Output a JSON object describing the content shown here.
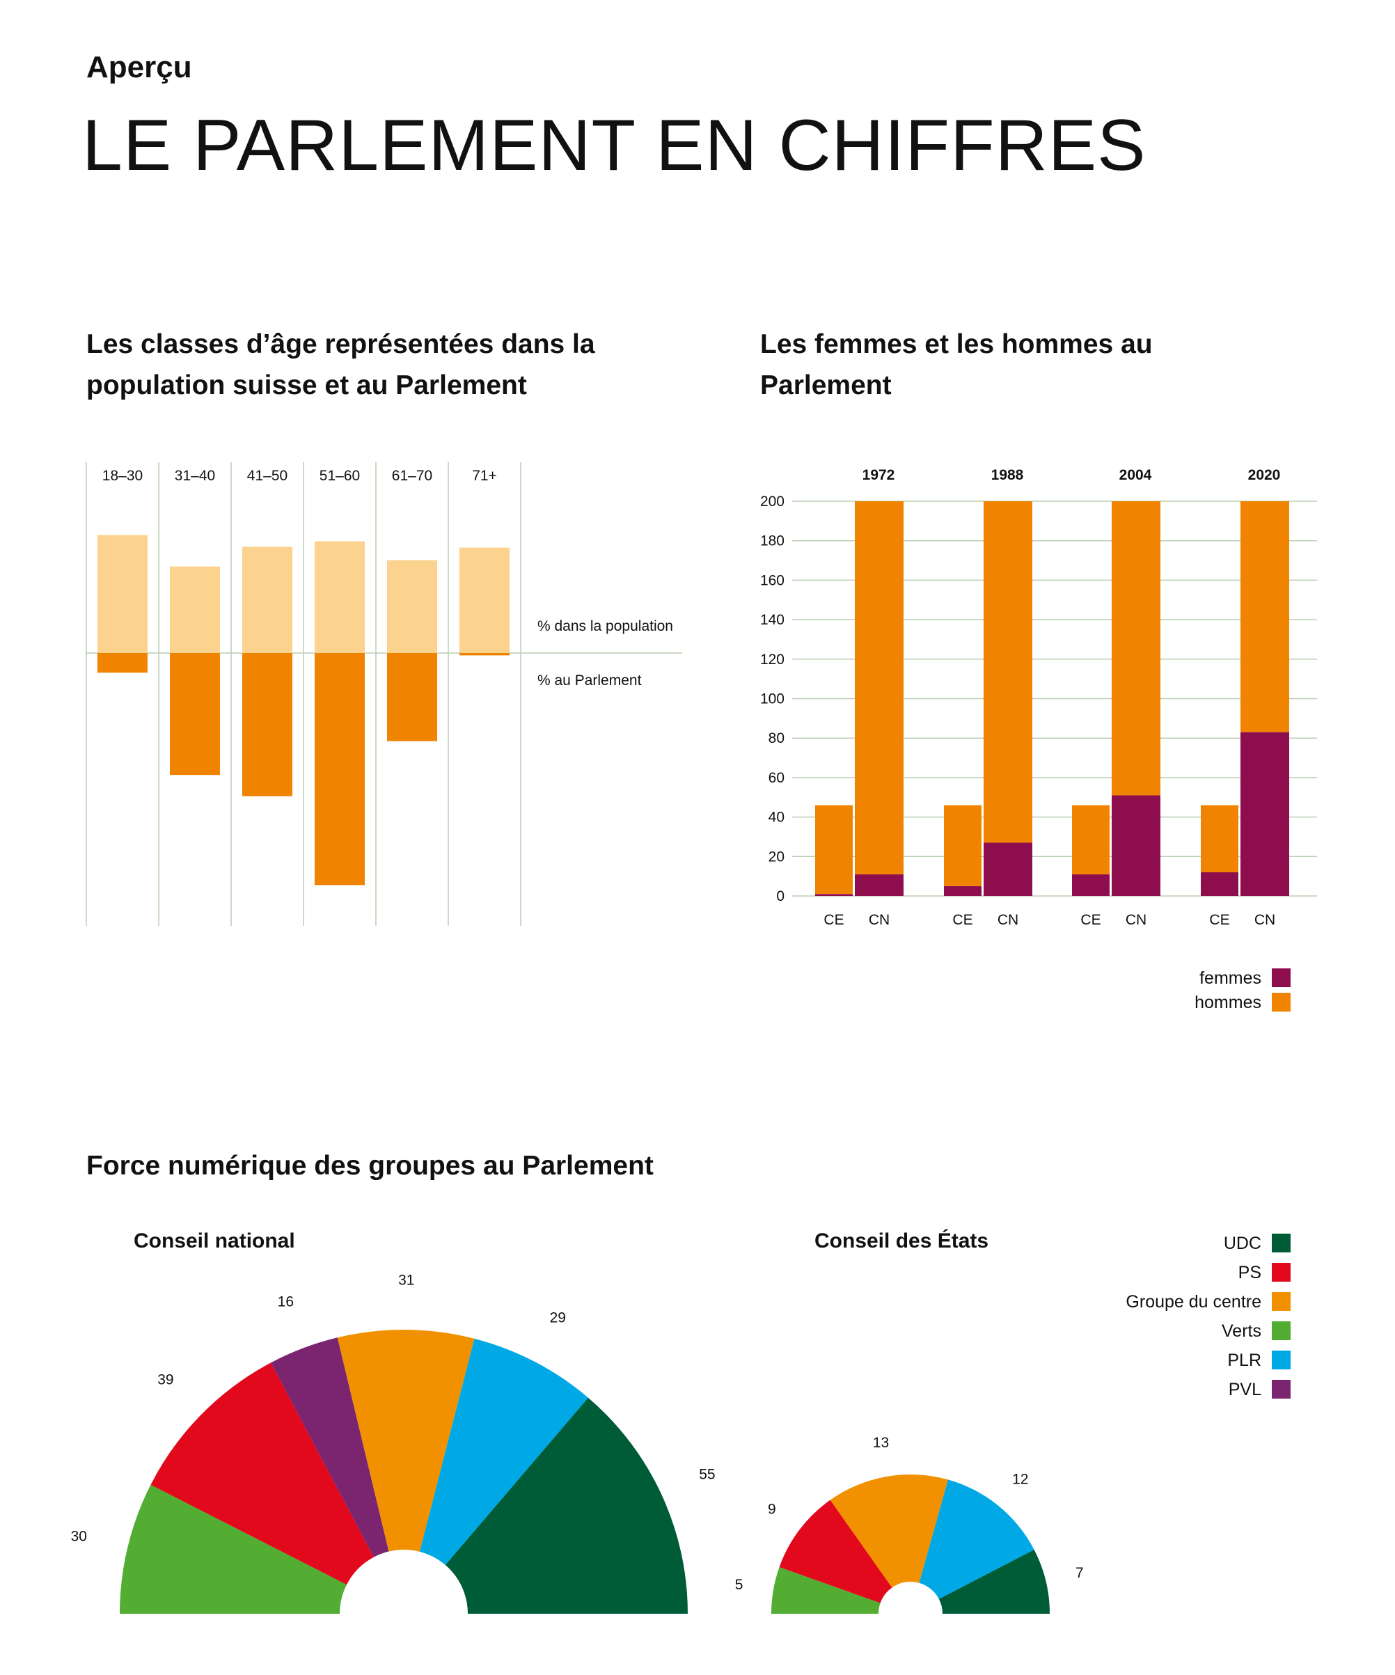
{
  "header": {
    "kicker": "Aperçu",
    "title": "LE PARLEMENT EN CHIFFRES"
  },
  "sections": {
    "age": {
      "title": "Les classes d’âge représentées dans la population suisse et au Parlement"
    },
    "gender": {
      "title": "Les femmes et les hommes au Parlement"
    },
    "force": {
      "title": "Force numérique des groupes au Parlement"
    }
  },
  "colors": {
    "population": "#fbd38e",
    "parliament": "#f08300",
    "femmes": "#8e0d4c",
    "hommes": "#f08300",
    "grid": "#b8ceb1",
    "UDC": "#005c37",
    "PS": "#e2091c",
    "Groupe du centre": "#f29100",
    "Verts": "#52ad32",
    "PLR": "#00a9e5",
    "PVL": "#7b2570"
  },
  "chart_data": [
    {
      "type": "bar",
      "categories": [
        "18–30",
        "31–40",
        "41–50",
        "51–60",
        "61–70",
        "71+"
      ],
      "series": [
        {
          "name": "% dans la population",
          "values": [
            15.0,
            11.0,
            13.5,
            14.2,
            11.8,
            13.4
          ]
        },
        {
          "name": "% au Parlement",
          "values": [
            2.5,
            15.5,
            18.2,
            29.5,
            11.2,
            0.3
          ]
        }
      ],
      "title": "Les classes d’âge représentées dans la population suisse et au Parlement",
      "labels": {
        "population": "% dans la population",
        "parliament": "% au Parlement"
      },
      "layout": "diverging"
    },
    {
      "type": "bar",
      "stacked": true,
      "groups": [
        "1972",
        "1988",
        "2004",
        "2020"
      ],
      "chambers": [
        "CE",
        "CN"
      ],
      "series": [
        {
          "name": "femmes",
          "values": {
            "1972": [
              1,
              11
            ],
            "1988": [
              5,
              27
            ],
            "2004": [
              11,
              51
            ],
            "2020": [
              12,
              83
            ]
          }
        },
        {
          "name": "hommes",
          "values": {
            "1972": [
              45,
              189
            ],
            "1988": [
              41,
              173
            ],
            "2004": [
              35,
              149
            ],
            "2020": [
              34,
              117
            ]
          }
        }
      ],
      "title": "Les femmes et les hommes au Parlement",
      "ylim": [
        0,
        200
      ],
      "yticks": [
        0,
        20,
        40,
        60,
        80,
        100,
        120,
        140,
        160,
        180,
        200
      ],
      "grid": true,
      "legend": "bottom-right"
    },
    {
      "type": "pie",
      "shape": "semicircle",
      "title": "Conseil national",
      "slices": [
        {
          "label": "Verts",
          "value": 30
        },
        {
          "label": "PS",
          "value": 39
        },
        {
          "label": "PVL",
          "value": 16
        },
        {
          "label": "Groupe du centre",
          "value": 31
        },
        {
          "label": "PLR",
          "value": 29
        },
        {
          "label": "UDC",
          "value": 55
        }
      ]
    },
    {
      "type": "pie",
      "shape": "semicircle",
      "title": "Conseil des États",
      "slices": [
        {
          "label": "Verts",
          "value": 5
        },
        {
          "label": "PS",
          "value": 9
        },
        {
          "label": "Groupe du centre",
          "value": 13
        },
        {
          "label": "PLR",
          "value": 12
        },
        {
          "label": "UDC",
          "value": 7
        }
      ]
    }
  ],
  "parties_legend": [
    "UDC",
    "PS",
    "Groupe du centre",
    "Verts",
    "PLR",
    "PVL"
  ]
}
